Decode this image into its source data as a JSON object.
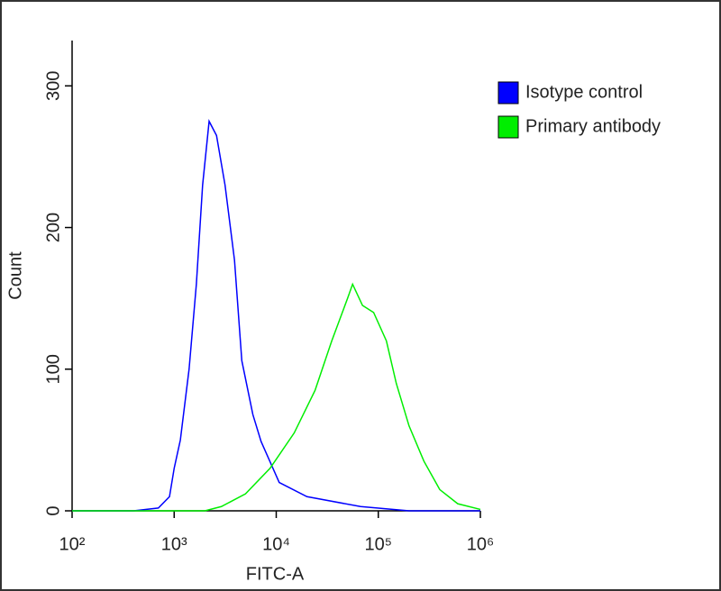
{
  "chart_data": {
    "type": "line",
    "xlabel": "FITC-A",
    "ylabel": "Count",
    "xscale": "log",
    "xlim": [
      100,
      1000000
    ],
    "ylim": [
      0,
      332
    ],
    "xticks": [
      {
        "value": 100,
        "label": "10²"
      },
      {
        "value": 1000,
        "label": "10³"
      },
      {
        "value": 10000,
        "label": "10⁴"
      },
      {
        "value": 100000,
        "label": "10⁵"
      },
      {
        "value": 1000000,
        "label": "10⁶"
      }
    ],
    "yticks": [
      0,
      100,
      200,
      300
    ],
    "legend": "upper right",
    "series": [
      {
        "name": "Isotype control",
        "color": "#0000ff",
        "x": [
          100,
          400,
          700,
          900,
          1000,
          1150,
          1400,
          1650,
          1900,
          2200,
          2600,
          3150,
          3900,
          4600,
          5900,
          7100,
          10700,
          20000,
          67000,
          200000,
          1000000
        ],
        "values": [
          0,
          0,
          2,
          10,
          30,
          50,
          100,
          160,
          230,
          275,
          265,
          230,
          177,
          106,
          68,
          49,
          20,
          10,
          3,
          0,
          0
        ]
      },
      {
        "name": "Primary antibody",
        "color": "#00ee00",
        "x": [
          100,
          2000,
          2900,
          5000,
          8700,
          15000,
          24000,
          35000,
          50000,
          56000,
          70000,
          90000,
          120000,
          150000,
          200000,
          280000,
          400000,
          600000,
          1000000
        ],
        "values": [
          0,
          0,
          3,
          12,
          30,
          55,
          85,
          120,
          150,
          160,
          145,
          140,
          120,
          90,
          60,
          35,
          15,
          5,
          1
        ]
      }
    ]
  }
}
